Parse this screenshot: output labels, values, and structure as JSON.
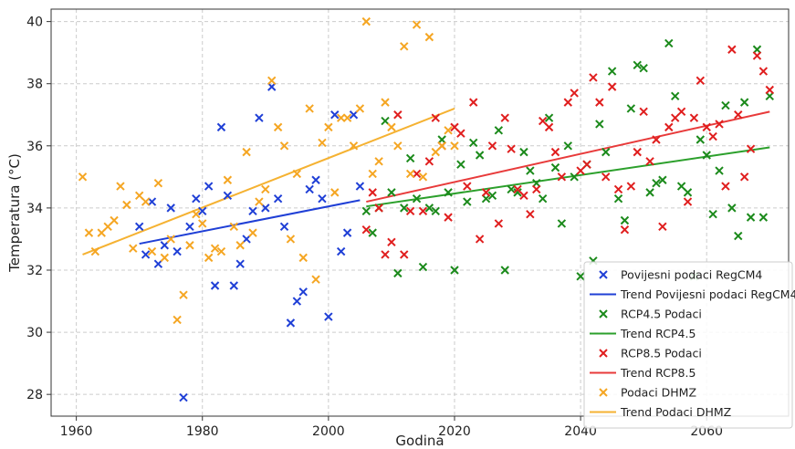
{
  "chart_data": {
    "type": "scatter",
    "title": "",
    "xlabel": "Godina",
    "ylabel": "Temperatura (°C)",
    "xlim": [
      1956,
      2073
    ],
    "ylim": [
      27.3,
      40.4
    ],
    "xticks": [
      1960,
      1980,
      2000,
      2020,
      2040,
      2060
    ],
    "yticks": [
      28,
      30,
      32,
      34,
      36,
      38,
      40
    ],
    "grid": true,
    "legend_position": "lower-right",
    "series": [
      {
        "name": "Povijesni podaci RegCM4",
        "kind": "scatter",
        "color": "#1f3fd6",
        "points": [
          [
            1970,
            33.4
          ],
          [
            1971,
            32.5
          ],
          [
            1972,
            34.2
          ],
          [
            1973,
            32.2
          ],
          [
            1974,
            32.8
          ],
          [
            1975,
            34.0
          ],
          [
            1976,
            32.6
          ],
          [
            1977,
            27.9
          ],
          [
            1978,
            33.4
          ],
          [
            1979,
            34.3
          ],
          [
            1980,
            33.9
          ],
          [
            1981,
            34.7
          ],
          [
            1982,
            31.5
          ],
          [
            1983,
            36.6
          ],
          [
            1984,
            34.4
          ],
          [
            1985,
            31.5
          ],
          [
            1986,
            32.2
          ],
          [
            1987,
            33.0
          ],
          [
            1988,
            33.9
          ],
          [
            1989,
            36.9
          ],
          [
            1990,
            34.0
          ],
          [
            1991,
            37.9
          ],
          [
            1992,
            34.3
          ],
          [
            1993,
            33.4
          ],
          [
            1994,
            30.3
          ],
          [
            1995,
            31.0
          ],
          [
            1996,
            31.3
          ],
          [
            1997,
            34.6
          ],
          [
            1998,
            34.9
          ],
          [
            1999,
            34.3
          ],
          [
            2000,
            30.5
          ],
          [
            2001,
            37.0
          ],
          [
            2002,
            32.6
          ],
          [
            2003,
            33.2
          ],
          [
            2004,
            37.0
          ],
          [
            2005,
            34.7
          ]
        ]
      },
      {
        "name": "Trend Povijesni podaci RegCM4",
        "kind": "line",
        "color": "#1f3fd6",
        "points": [
          [
            1970,
            32.85
          ],
          [
            2005,
            34.25
          ]
        ]
      },
      {
        "name": "RCP4.5 Podaci",
        "kind": "scatter",
        "color": "#1b8a1b",
        "points": [
          [
            2006,
            33.9
          ],
          [
            2007,
            33.2
          ],
          [
            2008,
            34.0
          ],
          [
            2009,
            36.8
          ],
          [
            2010,
            34.5
          ],
          [
            2011,
            31.9
          ],
          [
            2012,
            34.0
          ],
          [
            2013,
            35.6
          ],
          [
            2014,
            34.3
          ],
          [
            2015,
            32.1
          ],
          [
            2016,
            34.0
          ],
          [
            2017,
            33.9
          ],
          [
            2018,
            36.2
          ],
          [
            2019,
            34.5
          ],
          [
            2020,
            32.0
          ],
          [
            2021,
            35.4
          ],
          [
            2022,
            34.2
          ],
          [
            2023,
            36.1
          ],
          [
            2024,
            35.7
          ],
          [
            2025,
            34.3
          ],
          [
            2026,
            34.4
          ],
          [
            2027,
            36.5
          ],
          [
            2028,
            32.0
          ],
          [
            2029,
            34.6
          ],
          [
            2030,
            34.5
          ],
          [
            2031,
            35.8
          ],
          [
            2032,
            35.2
          ],
          [
            2033,
            34.8
          ],
          [
            2034,
            34.3
          ],
          [
            2035,
            36.9
          ],
          [
            2036,
            35.3
          ],
          [
            2037,
            33.5
          ],
          [
            2038,
            36.0
          ],
          [
            2039,
            35.0
          ],
          [
            2040,
            31.8
          ],
          [
            2041,
            35.4
          ],
          [
            2042,
            32.3
          ],
          [
            2043,
            36.7
          ],
          [
            2044,
            35.8
          ],
          [
            2045,
            38.4
          ],
          [
            2046,
            34.3
          ],
          [
            2047,
            33.6
          ],
          [
            2048,
            37.2
          ],
          [
            2049,
            38.6
          ],
          [
            2050,
            38.5
          ],
          [
            2051,
            34.5
          ],
          [
            2052,
            34.8
          ],
          [
            2053,
            34.9
          ],
          [
            2054,
            39.3
          ],
          [
            2055,
            37.6
          ],
          [
            2056,
            34.7
          ],
          [
            2057,
            34.5
          ],
          [
            2058,
            31.8
          ],
          [
            2059,
            36.2
          ],
          [
            2060,
            35.7
          ],
          [
            2061,
            33.8
          ],
          [
            2062,
            35.2
          ],
          [
            2063,
            37.3
          ],
          [
            2064,
            34.0
          ],
          [
            2065,
            33.1
          ],
          [
            2066,
            37.4
          ],
          [
            2067,
            33.7
          ],
          [
            2068,
            39.1
          ],
          [
            2069,
            33.7
          ],
          [
            2070,
            37.6
          ]
        ]
      },
      {
        "name": "Trend RCP4.5",
        "kind": "line",
        "color": "#2ca02c",
        "points": [
          [
            2006,
            34.05
          ],
          [
            2070,
            35.95
          ]
        ]
      },
      {
        "name": "RCP8.5 Podaci",
        "kind": "scatter",
        "color": "#e01e1e",
        "points": [
          [
            2006,
            33.3
          ],
          [
            2007,
            34.5
          ],
          [
            2008,
            34.0
          ],
          [
            2009,
            32.5
          ],
          [
            2010,
            32.9
          ],
          [
            2011,
            37.0
          ],
          [
            2012,
            32.5
          ],
          [
            2013,
            33.9
          ],
          [
            2014,
            35.1
          ],
          [
            2015,
            33.9
          ],
          [
            2016,
            35.5
          ],
          [
            2017,
            36.9
          ],
          [
            2018,
            36.0
          ],
          [
            2019,
            33.7
          ],
          [
            2020,
            36.6
          ],
          [
            2021,
            36.4
          ],
          [
            2022,
            34.7
          ],
          [
            2023,
            37.4
          ],
          [
            2024,
            33.0
          ],
          [
            2025,
            34.5
          ],
          [
            2026,
            36.0
          ],
          [
            2027,
            33.5
          ],
          [
            2028,
            36.9
          ],
          [
            2029,
            35.9
          ],
          [
            2030,
            34.6
          ],
          [
            2031,
            34.4
          ],
          [
            2032,
            33.8
          ],
          [
            2033,
            34.6
          ],
          [
            2034,
            36.8
          ],
          [
            2035,
            36.6
          ],
          [
            2036,
            35.8
          ],
          [
            2037,
            35.0
          ],
          [
            2038,
            37.4
          ],
          [
            2039,
            37.7
          ],
          [
            2040,
            35.2
          ],
          [
            2041,
            35.4
          ],
          [
            2042,
            38.2
          ],
          [
            2043,
            37.4
          ],
          [
            2044,
            35.0
          ],
          [
            2045,
            37.9
          ],
          [
            2046,
            34.6
          ],
          [
            2047,
            33.3
          ],
          [
            2048,
            34.7
          ],
          [
            2049,
            35.8
          ],
          [
            2050,
            37.1
          ],
          [
            2051,
            35.5
          ],
          [
            2052,
            36.2
          ],
          [
            2053,
            33.4
          ],
          [
            2054,
            36.6
          ],
          [
            2055,
            36.9
          ],
          [
            2056,
            37.1
          ],
          [
            2057,
            34.2
          ],
          [
            2058,
            36.9
          ],
          [
            2059,
            38.1
          ],
          [
            2060,
            36.6
          ],
          [
            2061,
            36.3
          ],
          [
            2062,
            36.7
          ],
          [
            2063,
            34.7
          ],
          [
            2064,
            39.1
          ],
          [
            2065,
            37.0
          ],
          [
            2066,
            35.0
          ],
          [
            2067,
            35.9
          ],
          [
            2068,
            38.9
          ],
          [
            2069,
            38.4
          ],
          [
            2070,
            37.8
          ]
        ]
      },
      {
        "name": "Trend RCP8.5",
        "kind": "line",
        "color": "#e83a3a",
        "points": [
          [
            2006,
            34.2
          ],
          [
            2070,
            37.1
          ]
        ]
      },
      {
        "name": "Podaci DHMZ",
        "kind": "scatter",
        "color": "#f5a623",
        "points": [
          [
            1961,
            35.0
          ],
          [
            1962,
            33.2
          ],
          [
            1963,
            32.6
          ],
          [
            1964,
            33.2
          ],
          [
            1965,
            33.4
          ],
          [
            1966,
            33.6
          ],
          [
            1967,
            34.7
          ],
          [
            1968,
            34.1
          ],
          [
            1969,
            32.7
          ],
          [
            1970,
            34.4
          ],
          [
            1971,
            34.2
          ],
          [
            1972,
            32.6
          ],
          [
            1973,
            34.8
          ],
          [
            1974,
            32.4
          ],
          [
            1975,
            33.0
          ],
          [
            1976,
            30.4
          ],
          [
            1977,
            31.2
          ],
          [
            1978,
            32.8
          ],
          [
            1979,
            33.8
          ],
          [
            1980,
            33.5
          ],
          [
            1981,
            32.4
          ],
          [
            1982,
            32.7
          ],
          [
            1983,
            32.6
          ],
          [
            1984,
            34.9
          ],
          [
            1985,
            33.4
          ],
          [
            1986,
            32.8
          ],
          [
            1987,
            35.8
          ],
          [
            1988,
            33.2
          ],
          [
            1989,
            34.2
          ],
          [
            1990,
            34.6
          ],
          [
            1991,
            38.1
          ],
          [
            1992,
            36.6
          ],
          [
            1993,
            36.0
          ],
          [
            1994,
            33.0
          ],
          [
            1995,
            35.1
          ],
          [
            1996,
            32.4
          ],
          [
            1997,
            37.2
          ],
          [
            1998,
            31.7
          ],
          [
            1999,
            36.1
          ],
          [
            2000,
            36.6
          ],
          [
            2001,
            34.5
          ],
          [
            2002,
            36.9
          ],
          [
            2003,
            36.9
          ],
          [
            2004,
            36.0
          ],
          [
            2005,
            37.2
          ],
          [
            2006,
            40.0
          ],
          [
            2007,
            35.1
          ],
          [
            2008,
            35.5
          ],
          [
            2009,
            37.4
          ],
          [
            2010,
            36.6
          ],
          [
            2011,
            36.0
          ],
          [
            2012,
            39.2
          ],
          [
            2013,
            35.1
          ],
          [
            2014,
            39.9
          ],
          [
            2015,
            35.0
          ],
          [
            2016,
            39.5
          ],
          [
            2017,
            35.8
          ],
          [
            2018,
            36.0
          ],
          [
            2019,
            36.5
          ],
          [
            2020,
            36.0
          ]
        ]
      },
      {
        "name": "Trend Podaci DHMZ",
        "kind": "line",
        "color": "#f5b232",
        "points": [
          [
            1961,
            32.5
          ],
          [
            2020,
            37.2
          ]
        ]
      }
    ]
  }
}
